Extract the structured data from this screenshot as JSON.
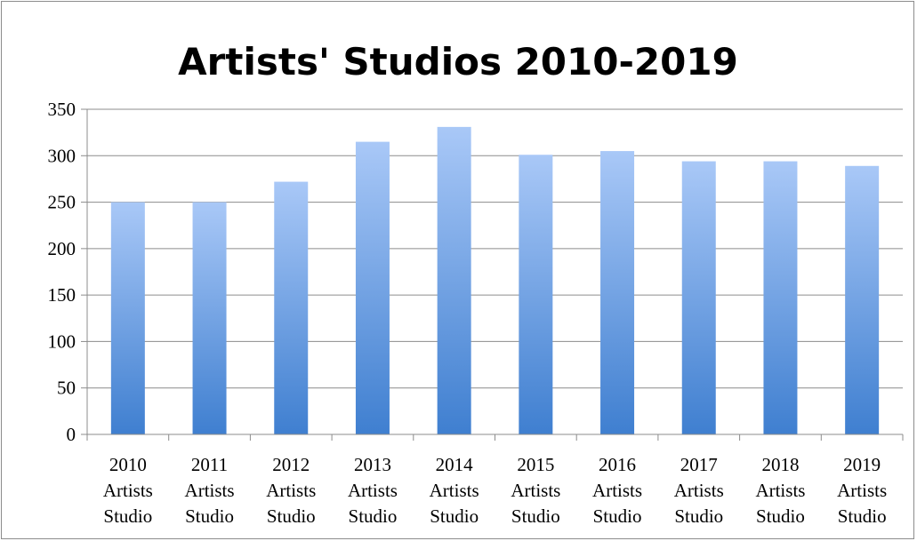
{
  "chart_data": {
    "type": "bar",
    "title": "Artists' Studios 2010-2019",
    "categories": [
      [
        "2010",
        "Artists",
        "Studio"
      ],
      [
        "2011",
        "Artists",
        "Studio"
      ],
      [
        "2012",
        "Artists",
        "Studio"
      ],
      [
        "2013",
        "Artists",
        "Studio"
      ],
      [
        "2014",
        "Artists",
        "Studio"
      ],
      [
        "2015",
        "Artists",
        "Studio"
      ],
      [
        "2016",
        "Artists",
        "Studio"
      ],
      [
        "2017",
        "Artists",
        "Studio"
      ],
      [
        "2018",
        "Artists",
        "Studio"
      ],
      [
        "2019",
        "Artists",
        "Studio"
      ]
    ],
    "values": [
      250,
      250,
      272,
      315,
      331,
      301,
      305,
      294,
      294,
      289
    ],
    "ylim": [
      0,
      350
    ],
    "yticks": [
      0,
      50,
      100,
      150,
      200,
      250,
      300,
      350
    ],
    "xlabel": "",
    "ylabel": "",
    "grid": true,
    "legend": "none",
    "colors": {
      "bar_top": "#a9c8f7",
      "bar_bottom": "#3f7fd0",
      "grid": "#8c8c8c",
      "axis": "#8c8c8c"
    }
  }
}
